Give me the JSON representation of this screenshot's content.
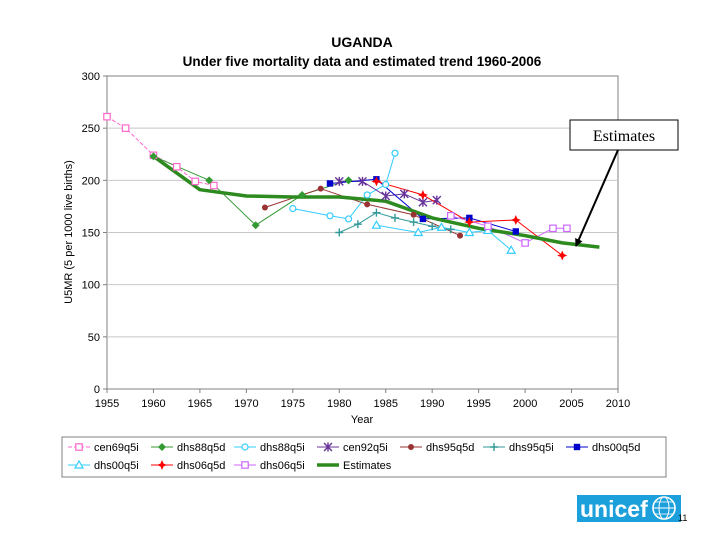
{
  "page": {
    "page_number": "11"
  },
  "logo": {
    "text": "unicef"
  },
  "callout": {
    "text": "Estimates"
  },
  "chart_data": {
    "type": "line",
    "title": "UGANDA",
    "subtitle": "Under five mortality data and estimated trend 1960-2006",
    "xlabel": "Year",
    "ylabel": "U5MR (5 per 1000 live births)",
    "xlim": [
      1955,
      2010
    ],
    "ylim": [
      0,
      300
    ],
    "xticks": [
      1955,
      1960,
      1965,
      1970,
      1975,
      1980,
      1985,
      1990,
      1995,
      2000,
      2005,
      2010
    ],
    "yticks": [
      0,
      50,
      100,
      150,
      200,
      250,
      300
    ],
    "legend_position": "bottom",
    "series": [
      {
        "name": "cen69q5i",
        "color": "#ff66cc",
        "dash": "4,2",
        "marker": "square-open",
        "width": 1,
        "x": [
          1955,
          1957,
          1960,
          1962.5,
          1964.5,
          1966.5
        ],
        "y": [
          261,
          250,
          224,
          213,
          199,
          195
        ]
      },
      {
        "name": "dhs88q5d",
        "color": "#339933",
        "dash": "",
        "marker": "diamond",
        "width": 1,
        "x": [
          1960,
          1966,
          1971,
          1976,
          1981
        ],
        "y": [
          223,
          200,
          157,
          186,
          200
        ]
      },
      {
        "name": "dhs88q5i",
        "color": "#33ccff",
        "dash": "",
        "marker": "circle-open",
        "width": 1,
        "x": [
          1975,
          1979,
          1981,
          1983,
          1985,
          1986
        ],
        "y": [
          173,
          166,
          163,
          186,
          196,
          226
        ]
      },
      {
        "name": "cen92q5i",
        "color": "#663399",
        "dash": "",
        "marker": "star",
        "width": 1,
        "x": [
          1980,
          1982.5,
          1985,
          1987,
          1989,
          1990.5
        ],
        "y": [
          199,
          199,
          185,
          187,
          179,
          181
        ]
      },
      {
        "name": "dhs95q5d",
        "color": "#993333",
        "dash": "",
        "marker": "circle",
        "width": 1,
        "x": [
          1972,
          1978,
          1983,
          1988,
          1993
        ],
        "y": [
          174,
          192,
          177,
          167,
          147
        ]
      },
      {
        "name": "dhs95q5i",
        "color": "#339999",
        "dash": "",
        "marker": "plus",
        "width": 1,
        "x": [
          1980,
          1982,
          1984,
          1986,
          1988,
          1990,
          1992
        ],
        "y": [
          150,
          158,
          169,
          164,
          160,
          156,
          153
        ]
      },
      {
        "name": "dhs00q5d",
        "color": "#0000cc",
        "dash": "",
        "marker": "square",
        "width": 1,
        "x": [
          1979,
          1984,
          1989,
          1994,
          1999
        ],
        "y": [
          197,
          201,
          163,
          164,
          151
        ]
      },
      {
        "name": "dhs00q5i",
        "color": "#33ccff",
        "dash": "",
        "marker": "triangle-open",
        "width": 1,
        "x": [
          1984,
          1988.5,
          1991,
          1994,
          1996,
          1998.5
        ],
        "y": [
          157,
          150,
          155,
          150,
          152,
          133
        ]
      },
      {
        "name": "dhs06q5d",
        "color": "#ff0000",
        "dash": "",
        "marker": "star4",
        "width": 1,
        "x": [
          1984,
          1989,
          1994,
          1999,
          2004
        ],
        "y": [
          199,
          186,
          160,
          162,
          128
        ]
      },
      {
        "name": "dhs06q5i",
        "color": "#cc66ff",
        "dash": "",
        "marker": "square-open",
        "width": 1,
        "x": [
          1992,
          1996,
          2000,
          2003,
          2004.5
        ],
        "y": [
          166,
          156,
          140,
          154,
          154
        ]
      },
      {
        "name": "Estimates",
        "color": "#2d8a1e",
        "dash": "",
        "marker": "none",
        "width": 3.5,
        "x": [
          1960,
          1965,
          1970,
          1975,
          1980,
          1985,
          1990,
          1995,
          2000,
          2004,
          2008
        ],
        "y": [
          223,
          191,
          185,
          184,
          184,
          180,
          164,
          154,
          147,
          140,
          136
        ]
      }
    ]
  }
}
